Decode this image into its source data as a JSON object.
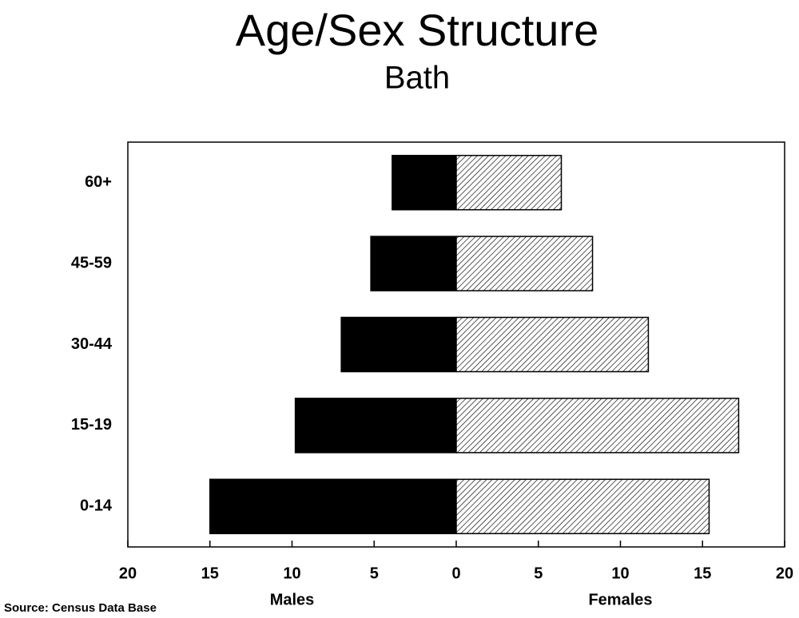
{
  "chart_data": {
    "type": "pyramid",
    "title": "Age/Sex Structure",
    "subtitle": "Bath",
    "source": "Source: Census Data Base",
    "categories": [
      "0-14",
      "15-19",
      "30-44",
      "45-59",
      "60+"
    ],
    "series": [
      {
        "name": "Males",
        "color": "#000000",
        "values": [
          -15.0,
          -9.8,
          -7.0,
          -5.2,
          -3.9
        ]
      },
      {
        "name": "Females",
        "color": "#000000",
        "hatch": true,
        "values": [
          15.4,
          17.2,
          11.7,
          8.3,
          6.4
        ]
      }
    ],
    "xlim": [
      -20,
      20
    ],
    "xticks": [
      {
        "value": -20,
        "label": "20"
      },
      {
        "value": -15,
        "label": "15"
      },
      {
        "value": -10,
        "label": "10"
      },
      {
        "value": -5,
        "label": "5"
      },
      0,
      5,
      10,
      15,
      20
    ]
  }
}
